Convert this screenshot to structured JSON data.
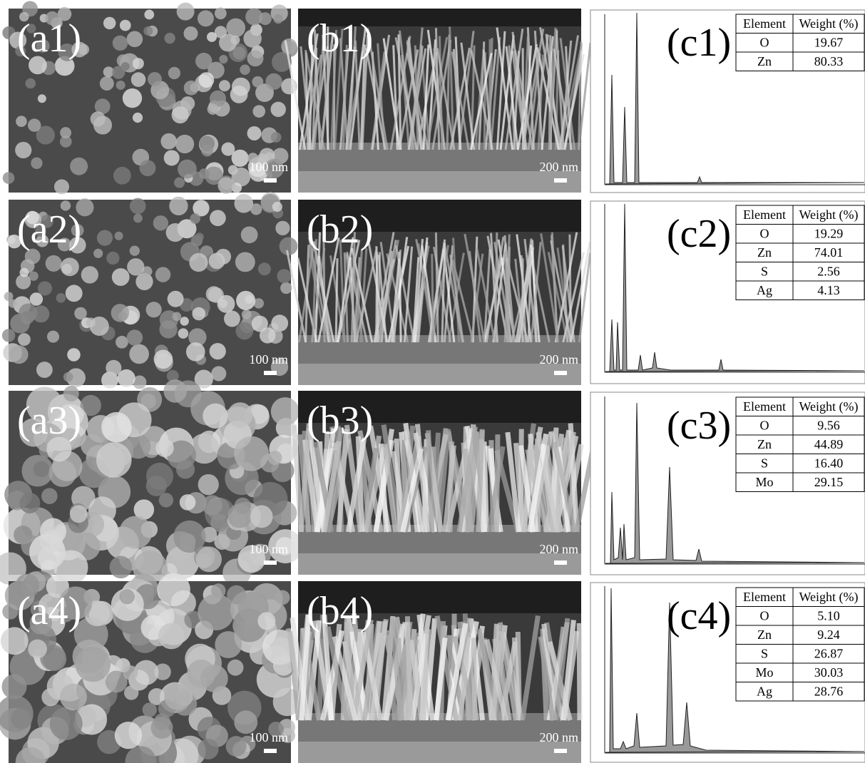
{
  "panels": {
    "a": [
      {
        "label": "(a1)",
        "scale": "100 nm"
      },
      {
        "label": "(a2)",
        "scale": "100 nm"
      },
      {
        "label": "(a3)",
        "scale": "100 nm"
      },
      {
        "label": "(a4)",
        "scale": "100 nm"
      }
    ],
    "b": [
      {
        "label": "(b1)",
        "scale": "200 nm"
      },
      {
        "label": "(b2)",
        "scale": "200 nm"
      },
      {
        "label": "(b3)",
        "scale": "200 nm"
      },
      {
        "label": "(b4)",
        "scale": "200 nm"
      }
    ],
    "c": [
      {
        "label": "(c1)",
        "table": {
          "header": [
            "Element",
            "Weight (%)"
          ],
          "rows": [
            [
              "O",
              "19.67"
            ],
            [
              "Zn",
              "80.33"
            ]
          ]
        }
      },
      {
        "label": "(c2)",
        "table": {
          "header": [
            "Element",
            "Weight (%)"
          ],
          "rows": [
            [
              "O",
              "19.29"
            ],
            [
              "Zn",
              "74.01"
            ],
            [
              "S",
              "2.56"
            ],
            [
              "Ag",
              "4.13"
            ]
          ]
        }
      },
      {
        "label": "(c3)",
        "table": {
          "header": [
            "Element",
            "Weight (%)"
          ],
          "rows": [
            [
              "O",
              "9.56"
            ],
            [
              "Zn",
              "44.89"
            ],
            [
              "S",
              "16.40"
            ],
            [
              "Mo",
              "29.15"
            ]
          ]
        }
      },
      {
        "label": "(c4)",
        "table": {
          "header": [
            "Element",
            "Weight (%)"
          ],
          "rows": [
            [
              "O",
              "5.10"
            ],
            [
              "Zn",
              "9.24"
            ],
            [
              "S",
              "26.87"
            ],
            [
              "Mo",
              "30.03"
            ],
            [
              "Ag",
              "28.76"
            ]
          ]
        }
      }
    ]
  }
}
